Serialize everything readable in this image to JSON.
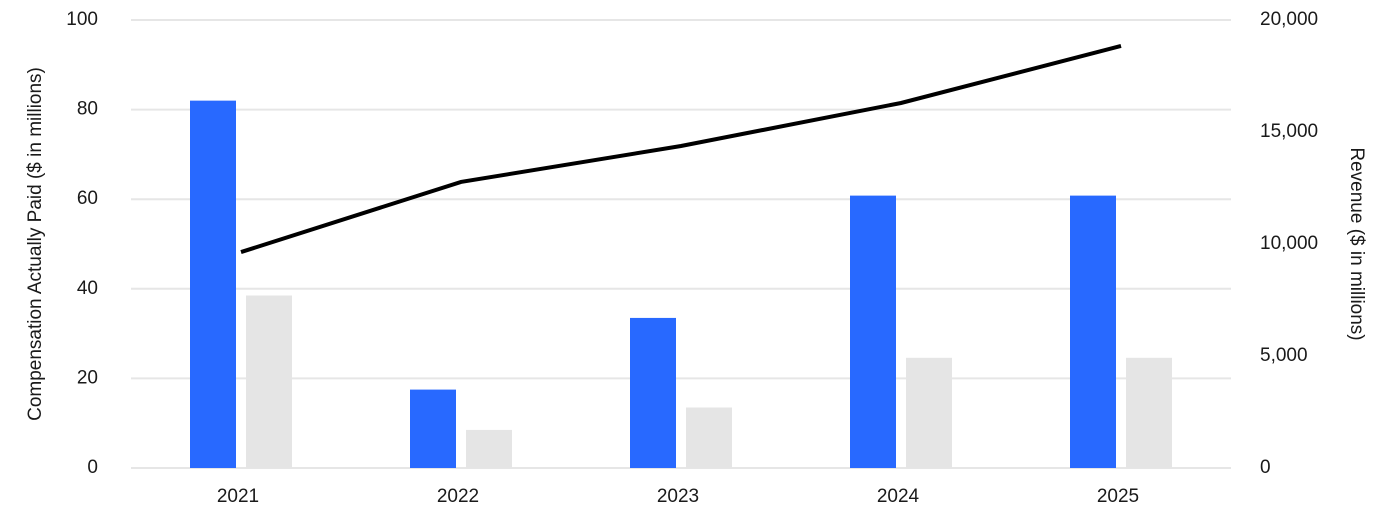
{
  "chart_data": {
    "type": "bar",
    "y_label": "Compensation Actually Paid ($ in millions)",
    "y2_label": "Revenue ($ in millions)",
    "categories": [
      "2021",
      "2022",
      "2023",
      "2024",
      "2025"
    ],
    "series": [
      {
        "type": "bar",
        "color": "#2869ff",
        "values": [
          82,
          17.5,
          33.5,
          60.8,
          60.8
        ]
      },
      {
        "type": "bar",
        "color": "#e5e5e5",
        "values": [
          38.5,
          8.5,
          13.5,
          24.6,
          24.6
        ]
      },
      {
        "type": "line",
        "axis": "y2",
        "color": "#000000",
        "values": [
          9640,
          12770,
          14375,
          16295,
          18840
        ]
      }
    ],
    "ylim": [
      0,
      100
    ],
    "yticks": [
      0,
      20,
      40,
      60,
      80,
      100
    ],
    "y2lim": [
      0,
      20000
    ],
    "y2ticks": [
      0,
      {
        "value": 5000,
        "label": "5,000"
      },
      {
        "value": 10000,
        "label": "10,000"
      },
      {
        "value": 15000,
        "label": "15,000"
      },
      {
        "value": 20000,
        "label": "20,000"
      }
    ],
    "grid": true
  }
}
